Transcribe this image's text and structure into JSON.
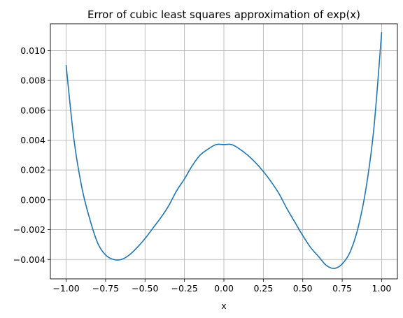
{
  "chart_data": {
    "type": "line",
    "title": "Error of cubic least squares approximation of exp(x)",
    "xlabel": "x",
    "ylabel": "",
    "xlim": [
      -1.1,
      1.1
    ],
    "ylim": [
      -0.0053,
      0.0118
    ],
    "grid": true,
    "line_color": "#1f77b4",
    "grid_color": "#b0b0b0",
    "x_ticks": [
      -1.0,
      -0.75,
      -0.5,
      -0.25,
      0.0,
      0.25,
      0.5,
      0.75,
      1.0
    ],
    "x_tick_labels": [
      "−1.00",
      "−0.75",
      "−0.50",
      "−0.25",
      "0.00",
      "0.25",
      "0.50",
      "0.75",
      "1.00"
    ],
    "y_ticks": [
      -0.004,
      -0.002,
      0.0,
      0.002,
      0.004,
      0.006,
      0.008,
      0.01
    ],
    "y_tick_labels": [
      "−0.004",
      "−0.002",
      "0.000",
      "0.002",
      "0.004",
      "0.006",
      "0.008",
      "0.010"
    ],
    "series": [
      {
        "x": [
          -1.0,
          -0.95,
          -0.9,
          -0.85,
          -0.8,
          -0.75,
          -0.7,
          -0.65,
          -0.6,
          -0.55,
          -0.5,
          -0.45,
          -0.4,
          -0.35,
          -0.3,
          -0.25,
          -0.2,
          -0.15,
          -0.1,
          -0.05,
          0.0,
          0.05,
          0.1,
          0.15,
          0.2,
          0.25,
          0.3,
          0.35,
          0.4,
          0.45,
          0.5,
          0.55,
          0.6,
          0.65,
          0.7,
          0.75,
          0.8,
          0.85,
          0.9,
          0.95,
          1.0
        ],
        "y": [
          0.009,
          0.004,
          0.0008,
          -0.0013,
          -0.0029,
          -0.0037,
          -0.004,
          -0.004,
          -0.0037,
          -0.0032,
          -0.0026,
          -0.0019,
          -0.0012,
          -0.0004,
          0.0006,
          0.0014,
          0.0023,
          0.003,
          0.0034,
          0.0037,
          0.0037,
          0.0037,
          0.0034,
          0.003,
          0.0025,
          0.0019,
          0.0012,
          0.0004,
          -0.0006,
          -0.0015,
          -0.0024,
          -0.0032,
          -0.0038,
          -0.0044,
          -0.0046,
          -0.0043,
          -0.0035,
          -0.0019,
          0.0007,
          0.0047,
          0.0112
        ]
      }
    ]
  }
}
